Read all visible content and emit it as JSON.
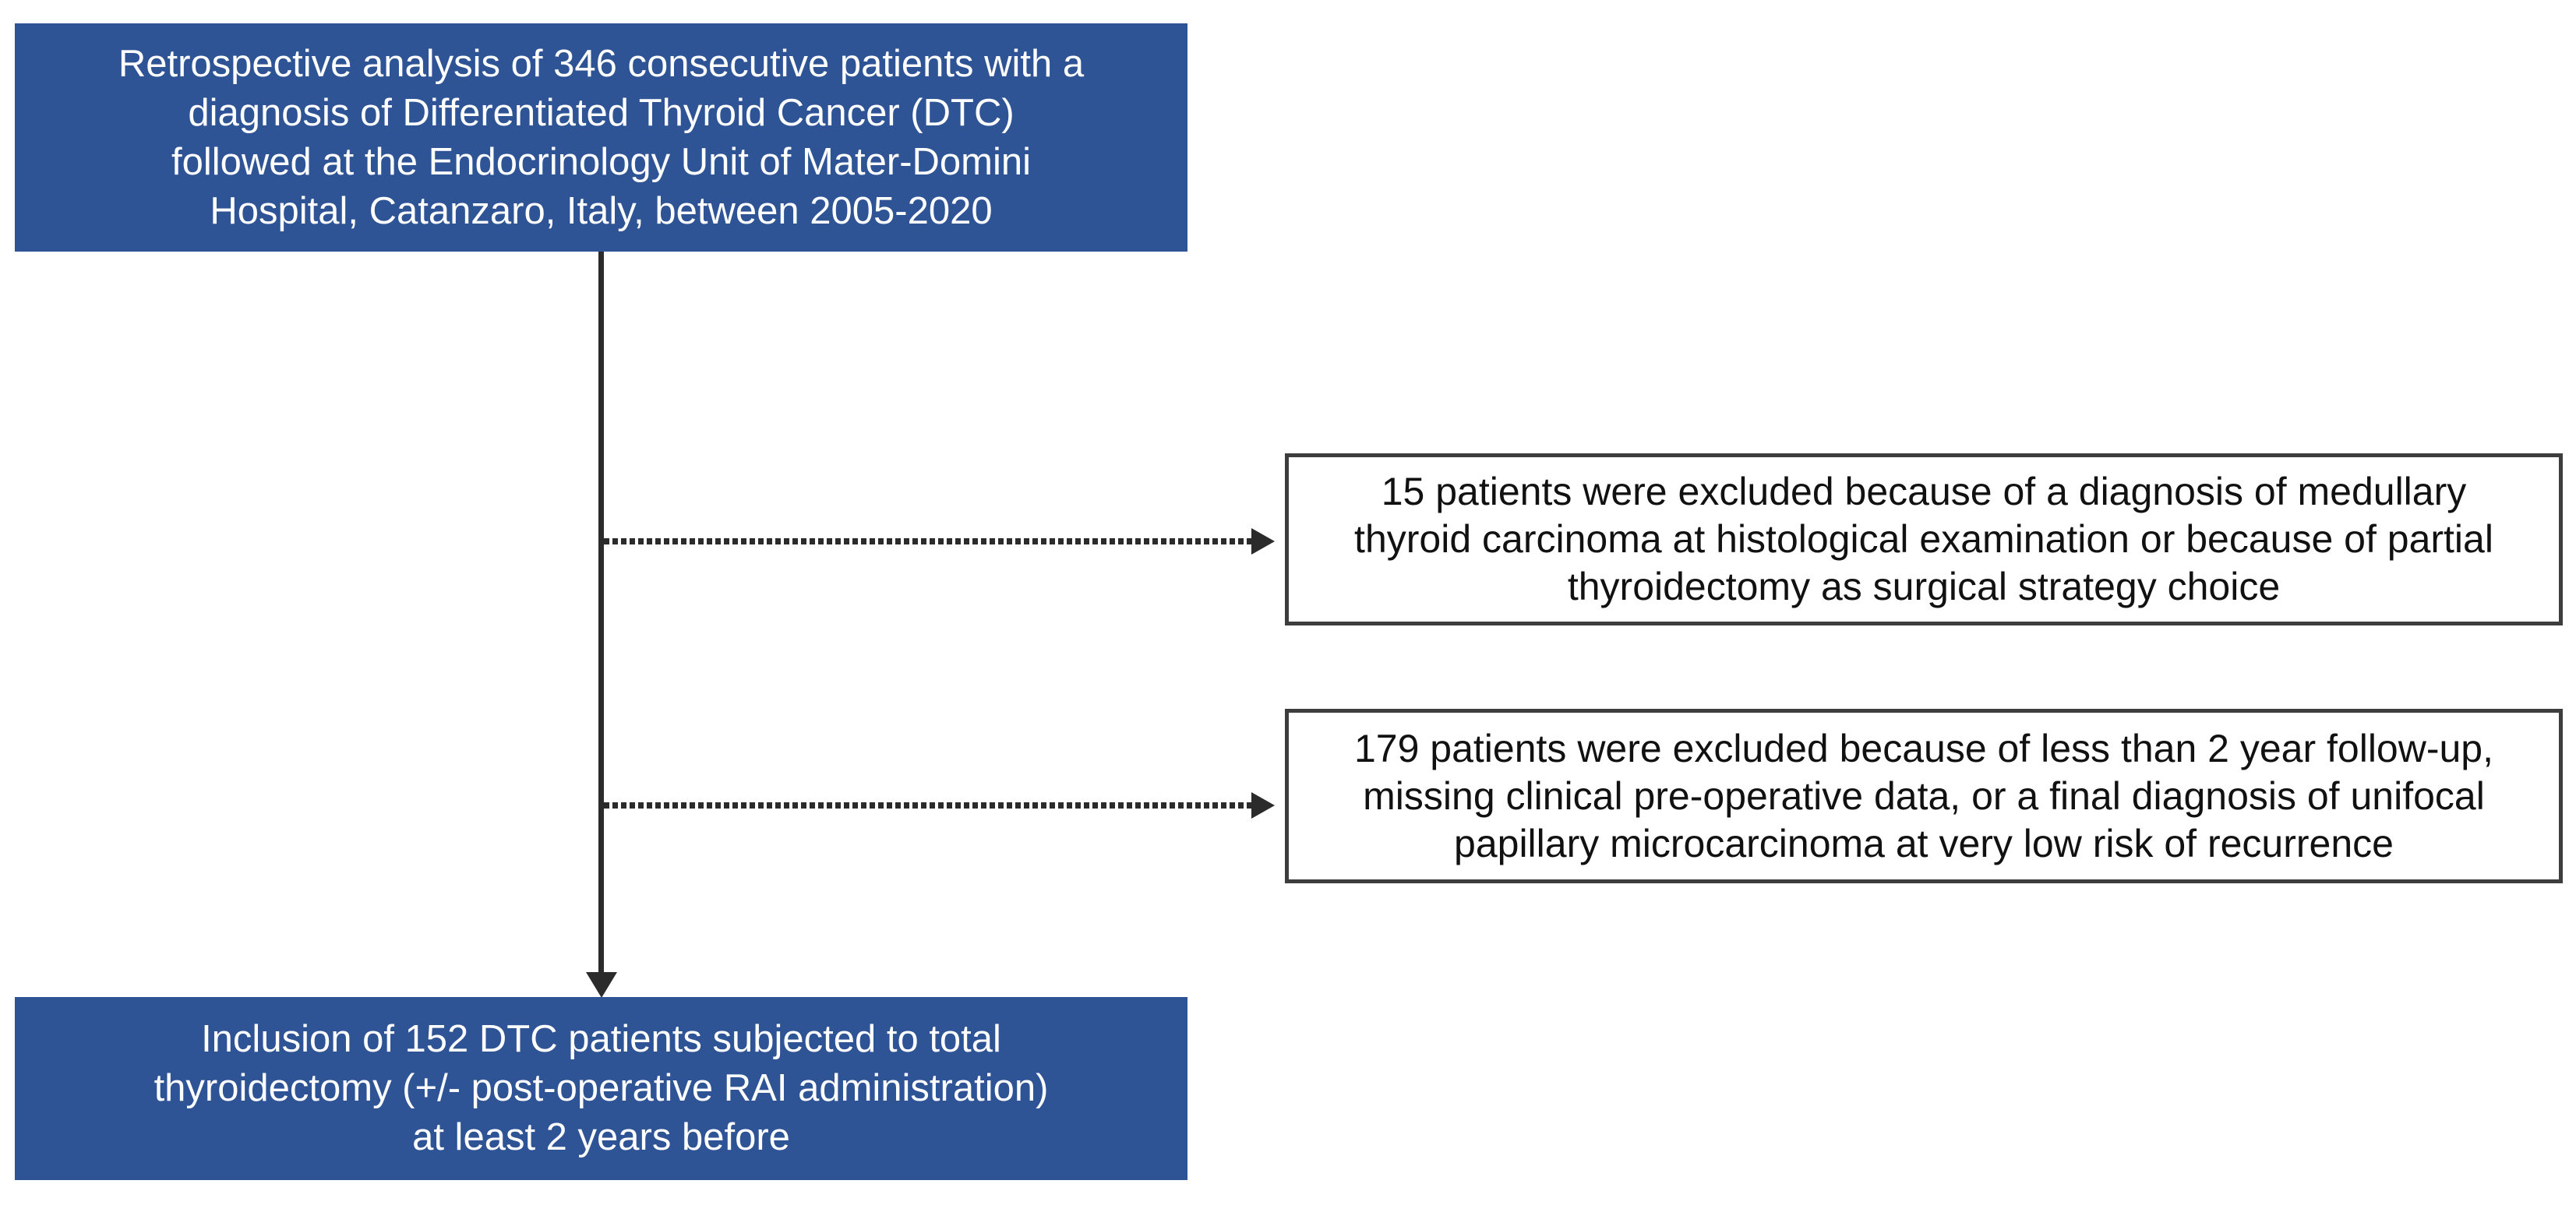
{
  "figure": {
    "type": "patient-flow-diagram",
    "colors": {
      "primary_box_fill": "#2F5496",
      "primary_box_text": "#FFFFFF",
      "exclusion_box_border": "#3D3D3D",
      "exclusion_box_text": "#111111",
      "connector": "#2B2B2B",
      "background": "#FFFFFF"
    },
    "top_box": {
      "lines": [
        "Retrospective analysis of 346 consecutive patients with a",
        "diagnosis of Differentiated Thyroid Cancer (DTC)",
        "followed at the Endocrinology Unit of Mater-Domini",
        "Hospital, Catanzaro, Italy, between 2005-2020"
      ]
    },
    "exclusion_boxes": [
      {
        "lines": [
          "15 patients were excluded because of a diagnosis of medullary",
          "thyroid carcinoma at histological examination or because of partial",
          "thyroidectomy as surgical strategy choice"
        ]
      },
      {
        "lines": [
          "179 patients were excluded because of less than 2 year follow-up,",
          "missing clinical pre-operative data, or a final diagnosis of unifocal",
          "papillary microcarcinoma at very low risk of recurrence"
        ]
      }
    ],
    "bottom_box": {
      "lines": [
        "Inclusion of 152 DTC patients subjected to total",
        "thyroidectomy (+/- post-operative RAI administration)",
        "at least 2 years before"
      ]
    },
    "connectors": [
      {
        "name": "main-flow",
        "from": "top_box",
        "to": "bottom_box",
        "style": "solid-arrow-down"
      },
      {
        "name": "exclusion-1",
        "from": "main-flow",
        "to": "exclusion_boxes.0",
        "style": "dotted-arrow-right"
      },
      {
        "name": "exclusion-2",
        "from": "main-flow",
        "to": "exclusion_boxes.1",
        "style": "dotted-arrow-right"
      }
    ]
  }
}
